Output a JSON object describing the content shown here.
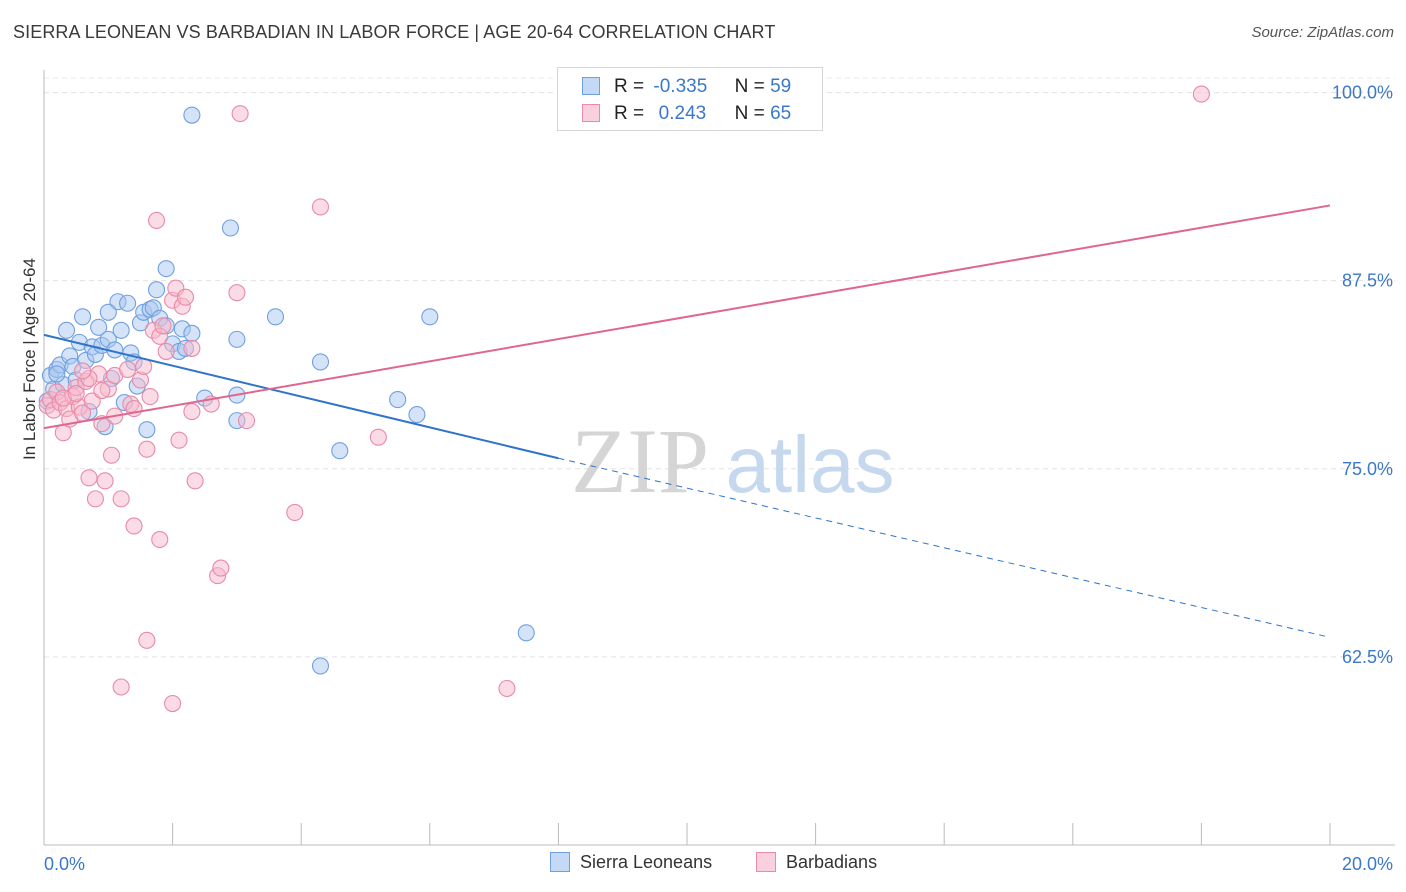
{
  "header": {
    "title": "SIERRA LEONEAN VS BARBADIAN IN LABOR FORCE | AGE 20-64 CORRELATION CHART",
    "source": "Source: ZipAtlas.com"
  },
  "watermark": {
    "zip": "ZIP",
    "atlas": "atlas"
  },
  "legend": {
    "rows": [
      {
        "r_label": "R =",
        "r_value": "-0.335",
        "n_label": "N =",
        "n_value": "59",
        "color": "#a9c8f0",
        "stroke": "#6fa0e0"
      },
      {
        "r_label": "R =",
        "r_value": " 0.243",
        "n_label": "N =",
        "n_value": "65",
        "color": "#f7b8cc",
        "stroke": "#e88aa8"
      }
    ]
  },
  "bottom_legend": [
    {
      "label": "Sierra Leoneans",
      "color": "#a9c8f0",
      "stroke": "#6fa0e0"
    },
    {
      "label": "Barbadians",
      "color": "#f7b8cc",
      "stroke": "#e88aa8"
    }
  ],
  "chart_data": {
    "type": "scatter",
    "title": "SIERRA LEONEAN VS BARBADIAN IN LABOR FORCE | AGE 20-64 CORRELATION CHART",
    "xlabel": "",
    "ylabel": "In Labor Force | Age 20-64",
    "xlim": [
      0,
      20
    ],
    "ylim": [
      50,
      101.5
    ],
    "x_tick_labels": [
      {
        "value": 0,
        "label": "0.0%"
      },
      {
        "value": 20,
        "label": "20.0%"
      }
    ],
    "y_tick_labels": [
      {
        "value": 100,
        "label": "100.0%"
      },
      {
        "value": 87.5,
        "label": "87.5%"
      },
      {
        "value": 75,
        "label": "75.0%"
      },
      {
        "value": 62.5,
        "label": "62.5%"
      }
    ],
    "x_minor_ticks": [
      2,
      4,
      6,
      8,
      10,
      12,
      14,
      16,
      18,
      20
    ],
    "grid": true,
    "series": [
      {
        "name": "Sierra Leoneans",
        "color": "#a9c8f0",
        "stroke": "#6fa0e0",
        "points": [
          [
            0.05,
            79.5
          ],
          [
            0.1,
            81.2
          ],
          [
            0.15,
            80.3
          ],
          [
            0.2,
            81.6
          ],
          [
            0.25,
            81.9
          ],
          [
            0.3,
            80.6
          ],
          [
            0.35,
            84.2
          ],
          [
            0.4,
            82.5
          ],
          [
            0.45,
            81.8
          ],
          [
            0.5,
            80.9
          ],
          [
            0.55,
            83.4
          ],
          [
            0.6,
            85.1
          ],
          [
            0.65,
            82.2
          ],
          [
            0.7,
            78.8
          ],
          [
            0.75,
            83.1
          ],
          [
            0.8,
            82.6
          ],
          [
            0.85,
            84.4
          ],
          [
            0.9,
            83.2
          ],
          [
            0.95,
            77.8
          ],
          [
            1.0,
            83.6
          ],
          [
            1.05,
            81.0
          ],
          [
            1.1,
            82.9
          ],
          [
            1.15,
            86.1
          ],
          [
            1.2,
            84.2
          ],
          [
            1.25,
            79.4
          ],
          [
            1.3,
            86.0
          ],
          [
            1.35,
            82.7
          ],
          [
            1.4,
            82.1
          ],
          [
            1.45,
            80.5
          ],
          [
            1.5,
            84.7
          ],
          [
            1.55,
            85.4
          ],
          [
            1.6,
            77.6
          ],
          [
            1.65,
            85.6
          ],
          [
            1.7,
            85.7
          ],
          [
            1.75,
            86.9
          ],
          [
            1.8,
            85.0
          ],
          [
            1.9,
            84.5
          ],
          [
            1.9,
            88.3
          ],
          [
            2.0,
            83.3
          ],
          [
            2.1,
            82.8
          ],
          [
            2.15,
            84.3
          ],
          [
            2.2,
            83.0
          ],
          [
            2.3,
            84.0
          ],
          [
            2.3,
            98.5
          ],
          [
            2.5,
            79.7
          ],
          [
            2.9,
            91.0
          ],
          [
            3.0,
            78.2
          ],
          [
            3.0,
            79.9
          ],
          [
            3.0,
            83.6
          ],
          [
            3.6,
            85.1
          ],
          [
            4.3,
            82.1
          ],
          [
            4.6,
            76.2
          ],
          [
            5.5,
            79.6
          ],
          [
            5.8,
            78.6
          ],
          [
            6.0,
            85.1
          ],
          [
            7.5,
            64.1
          ],
          [
            4.3,
            61.9
          ],
          [
            0.2,
            81.3
          ],
          [
            1.0,
            85.4
          ]
        ]
      },
      {
        "name": "Barbadians",
        "color": "#f7b8cc",
        "stroke": "#e88aa8",
        "points": [
          [
            0.05,
            79.2
          ],
          [
            0.1,
            79.6
          ],
          [
            0.15,
            78.9
          ],
          [
            0.2,
            80.1
          ],
          [
            0.25,
            79.4
          ],
          [
            0.3,
            77.4
          ],
          [
            0.35,
            79.0
          ],
          [
            0.4,
            78.3
          ],
          [
            0.45,
            79.8
          ],
          [
            0.5,
            80.4
          ],
          [
            0.55,
            79.1
          ],
          [
            0.6,
            78.7
          ],
          [
            0.65,
            80.8
          ],
          [
            0.7,
            74.4
          ],
          [
            0.75,
            79.5
          ],
          [
            0.8,
            73.0
          ],
          [
            0.85,
            81.3
          ],
          [
            0.9,
            78.0
          ],
          [
            0.95,
            74.2
          ],
          [
            1.0,
            80.3
          ],
          [
            1.05,
            75.9
          ],
          [
            1.1,
            81.2
          ],
          [
            1.2,
            73.0
          ],
          [
            1.3,
            81.6
          ],
          [
            1.35,
            79.3
          ],
          [
            1.4,
            71.2
          ],
          [
            1.5,
            80.9
          ],
          [
            1.55,
            81.8
          ],
          [
            1.6,
            76.3
          ],
          [
            1.65,
            79.8
          ],
          [
            1.7,
            84.2
          ],
          [
            1.75,
            91.5
          ],
          [
            1.8,
            83.8
          ],
          [
            1.8,
            70.3
          ],
          [
            1.85,
            84.5
          ],
          [
            1.9,
            82.8
          ],
          [
            2.0,
            86.2
          ],
          [
            2.05,
            87.0
          ],
          [
            2.1,
            76.9
          ],
          [
            2.15,
            85.8
          ],
          [
            2.2,
            86.4
          ],
          [
            2.3,
            83.0
          ],
          [
            2.3,
            78.8
          ],
          [
            2.35,
            74.2
          ],
          [
            2.6,
            79.3
          ],
          [
            2.7,
            67.9
          ],
          [
            2.75,
            68.4
          ],
          [
            3.0,
            86.7
          ],
          [
            3.05,
            98.6
          ],
          [
            3.15,
            78.2
          ],
          [
            3.9,
            72.1
          ],
          [
            4.3,
            92.4
          ],
          [
            5.2,
            77.1
          ],
          [
            7.2,
            60.4
          ],
          [
            18.0,
            99.9
          ],
          [
            1.6,
            63.6
          ],
          [
            1.2,
            60.5
          ],
          [
            2.0,
            59.4
          ],
          [
            0.3,
            79.7
          ],
          [
            0.5,
            80.0
          ],
          [
            0.7,
            81.0
          ],
          [
            0.9,
            80.2
          ],
          [
            1.1,
            78.5
          ],
          [
            1.4,
            79.0
          ],
          [
            0.6,
            81.5
          ]
        ]
      }
    ],
    "trend_lines": [
      {
        "series": "Sierra Leoneans",
        "color": "#2f74c9",
        "solid_from": [
          0,
          83.9
        ],
        "solid_to": [
          8.0,
          75.7
        ],
        "dashed_to": [
          20.0,
          63.8
        ]
      },
      {
        "series": "Barbadians",
        "color": "#e0668f",
        "from": [
          0,
          77.7
        ],
        "to": [
          20.0,
          92.5
        ]
      }
    ]
  }
}
